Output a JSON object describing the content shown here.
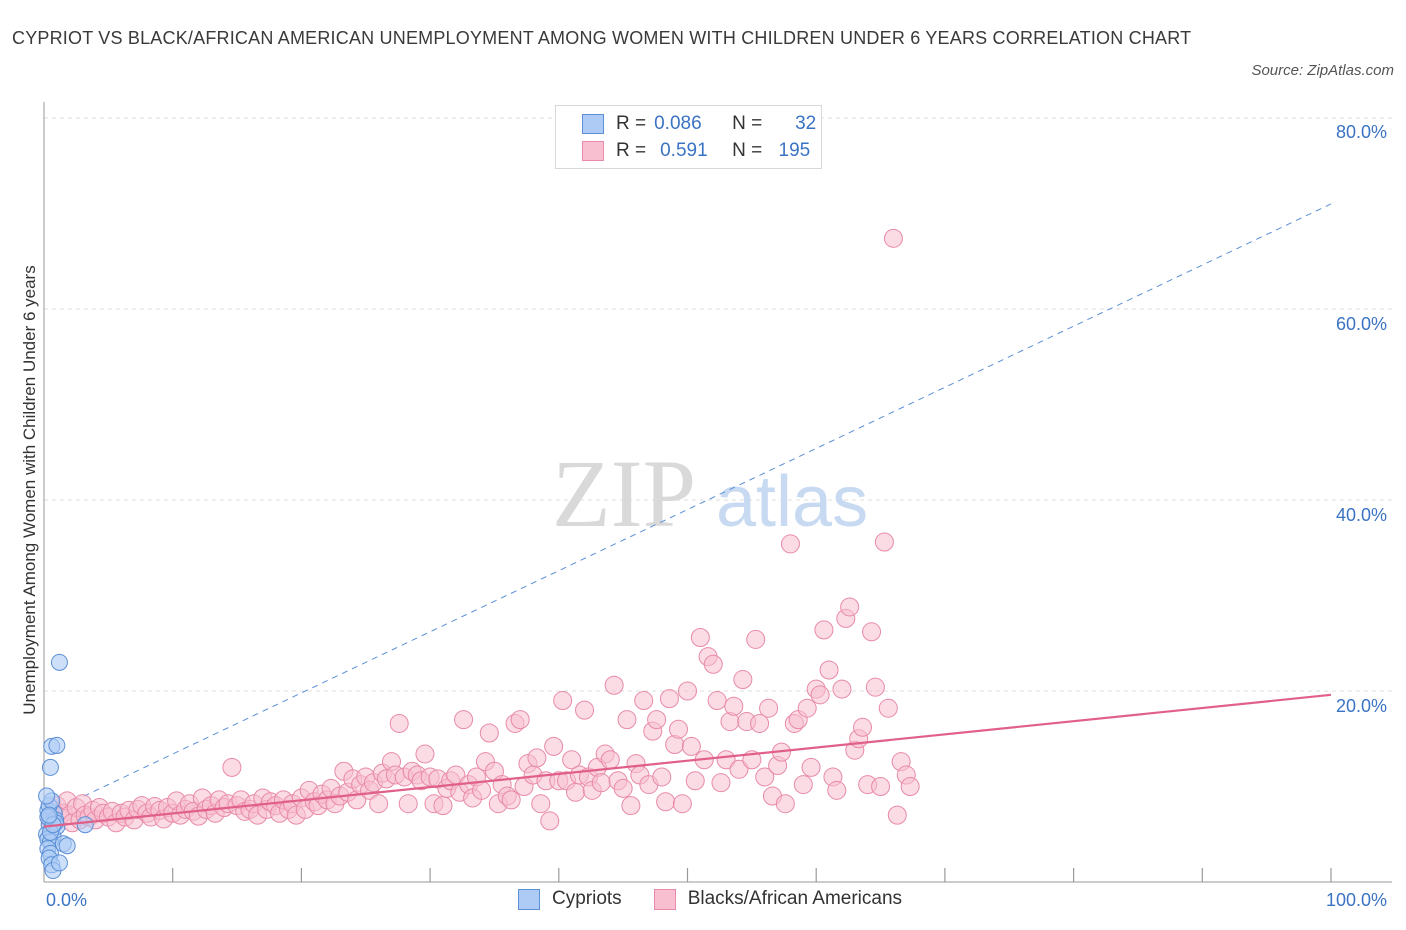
{
  "header": {
    "title": "CYPRIOT VS BLACK/AFRICAN AMERICAN UNEMPLOYMENT AMONG WOMEN WITH CHILDREN UNDER 6 YEARS CORRELATION CHART",
    "source": "Source: ZipAtlas.com"
  },
  "watermark": {
    "zip": "ZIP",
    "atlas": "atlas"
  },
  "legend": {
    "rows": [
      {
        "r_label": "R =",
        "r_value": "0.086",
        "n_label": "N =",
        "n_value": "32",
        "color": "#aecbf5"
      },
      {
        "r_label": "R =",
        "r_value": "0.591",
        "n_label": "N =",
        "n_value": "195",
        "color": "#f7bfd0"
      }
    ]
  },
  "colors": {
    "cypriot_fill": "#aecbf5",
    "cypriot_stroke": "#5b8fd6",
    "black_fill": "#f7bfd0",
    "black_stroke": "#e88aa8",
    "black_trend": "#e0608a",
    "cypriot_trend": "#5b8fd6",
    "tick_label": "#3b73c4"
  },
  "chart_data": {
    "type": "scatter",
    "title": "CYPRIOT VS BLACK/AFRICAN AMERICAN UNEMPLOYMENT AMONG WOMEN WITH CHILDREN UNDER 6 YEARS CORRELATION CHART",
    "xlabel": "",
    "ylabel": "Unemployment Among Women with Children Under 6 years",
    "xlim": [
      0,
      100
    ],
    "ylim": [
      0,
      80
    ],
    "x_tick_labels": [
      "0.0%",
      "100.0%"
    ],
    "y_tick_labels": [
      "20.0%",
      "40.0%",
      "60.0%",
      "80.0%"
    ],
    "y_ticks": [
      20,
      40,
      60,
      80
    ],
    "grid": "horizontal dashed",
    "legend_position": "top-center",
    "series": [
      {
        "name": "Cypriots",
        "R": 0.086,
        "N": 32,
        "trend": {
          "style": "dashed",
          "x": [
            0,
            100
          ],
          "y": [
            7.0,
            71.0
          ]
        },
        "points": [
          [
            0.3,
            7.5
          ],
          [
            0.5,
            6.8
          ],
          [
            0.4,
            6.0
          ],
          [
            0.6,
            5.5
          ],
          [
            0.2,
            5.0
          ],
          [
            0.7,
            4.8
          ],
          [
            0.3,
            4.5
          ],
          [
            0.5,
            4.2
          ],
          [
            0.8,
            7.2
          ],
          [
            0.4,
            8.0
          ],
          [
            0.6,
            8.5
          ],
          [
            0.2,
            9.0
          ],
          [
            0.9,
            6.5
          ],
          [
            1.0,
            5.8
          ],
          [
            0.3,
            3.5
          ],
          [
            0.5,
            3.0
          ],
          [
            0.4,
            2.5
          ],
          [
            0.6,
            1.8
          ],
          [
            0.7,
            1.2
          ],
          [
            0.5,
            12.0
          ],
          [
            0.6,
            14.2
          ],
          [
            1.0,
            14.3
          ],
          [
            1.2,
            23.0
          ],
          [
            1.5,
            4.0
          ],
          [
            1.8,
            3.8
          ],
          [
            1.2,
            2.0
          ],
          [
            0.9,
            6.2
          ],
          [
            0.3,
            6.8
          ],
          [
            0.5,
            5.2
          ],
          [
            0.7,
            6.0
          ],
          [
            3.2,
            6.0
          ],
          [
            0.4,
            7.0
          ]
        ]
      },
      {
        "name": "Blacks/African Americans",
        "R": 0.591,
        "N": 195,
        "trend": {
          "style": "solid",
          "x": [
            0,
            100
          ],
          "y": [
            5.8,
            19.6
          ]
        },
        "points": [
          [
            0.5,
            6.5
          ],
          [
            0.8,
            7.5
          ],
          [
            1.0,
            8.0
          ],
          [
            1.2,
            6.8
          ],
          [
            1.5,
            7.2
          ],
          [
            1.8,
            8.5
          ],
          [
            2.0,
            7.0
          ],
          [
            2.2,
            6.2
          ],
          [
            2.5,
            7.8
          ],
          [
            2.8,
            6.5
          ],
          [
            3.0,
            8.2
          ],
          [
            3.2,
            7.0
          ],
          [
            3.5,
            6.8
          ],
          [
            3.8,
            7.5
          ],
          [
            4.0,
            6.5
          ],
          [
            4.3,
            7.8
          ],
          [
            4.6,
            7.2
          ],
          [
            5.0,
            6.8
          ],
          [
            5.3,
            7.4
          ],
          [
            5.6,
            6.2
          ],
          [
            6.0,
            7.2
          ],
          [
            6.3,
            6.8
          ],
          [
            6.6,
            7.5
          ],
          [
            7.0,
            6.5
          ],
          [
            7.3,
            7.6
          ],
          [
            7.6,
            8.0
          ],
          [
            8.0,
            7.2
          ],
          [
            8.3,
            6.8
          ],
          [
            8.6,
            7.9
          ],
          [
            9.0,
            7.5
          ],
          [
            9.3,
            6.6
          ],
          [
            9.6,
            7.8
          ],
          [
            10.0,
            7.2
          ],
          [
            10.3,
            8.5
          ],
          [
            10.6,
            7.0
          ],
          [
            11.0,
            7.6
          ],
          [
            11.3,
            8.2
          ],
          [
            11.6,
            7.4
          ],
          [
            12.0,
            6.9
          ],
          [
            12.3,
            8.8
          ],
          [
            12.6,
            7.6
          ],
          [
            13.0,
            8.0
          ],
          [
            13.3,
            7.2
          ],
          [
            13.6,
            8.6
          ],
          [
            14.0,
            7.8
          ],
          [
            14.3,
            8.2
          ],
          [
            14.6,
            12.0
          ],
          [
            15.0,
            8.0
          ],
          [
            15.3,
            8.6
          ],
          [
            15.6,
            7.4
          ],
          [
            16.0,
            7.6
          ],
          [
            16.3,
            8.2
          ],
          [
            16.6,
            7.0
          ],
          [
            17.0,
            8.8
          ],
          [
            17.3,
            7.6
          ],
          [
            17.6,
            8.4
          ],
          [
            18.0,
            8.0
          ],
          [
            18.3,
            7.2
          ],
          [
            18.6,
            8.6
          ],
          [
            19.0,
            7.6
          ],
          [
            19.3,
            8.2
          ],
          [
            19.6,
            7.0
          ],
          [
            20.0,
            8.8
          ],
          [
            20.3,
            7.6
          ],
          [
            20.6,
            9.6
          ],
          [
            21.0,
            8.4
          ],
          [
            21.3,
            8.0
          ],
          [
            21.6,
            9.2
          ],
          [
            22.0,
            8.6
          ],
          [
            22.3,
            9.8
          ],
          [
            22.6,
            8.2
          ],
          [
            23.0,
            9.0
          ],
          [
            23.3,
            11.6
          ],
          [
            23.6,
            9.4
          ],
          [
            24.0,
            10.8
          ],
          [
            24.3,
            8.6
          ],
          [
            24.6,
            10.2
          ],
          [
            25.0,
            11.0
          ],
          [
            25.3,
            9.6
          ],
          [
            25.6,
            10.4
          ],
          [
            26.0,
            8.2
          ],
          [
            26.3,
            11.4
          ],
          [
            26.6,
            10.8
          ],
          [
            27.0,
            12.6
          ],
          [
            27.3,
            11.2
          ],
          [
            27.6,
            16.6
          ],
          [
            28.0,
            11.0
          ],
          [
            28.3,
            8.2
          ],
          [
            28.6,
            11.6
          ],
          [
            29.0,
            11.2
          ],
          [
            29.3,
            10.6
          ],
          [
            29.6,
            13.4
          ],
          [
            30.0,
            11.0
          ],
          [
            30.3,
            8.2
          ],
          [
            30.6,
            10.8
          ],
          [
            31.0,
            8.0
          ],
          [
            31.3,
            9.8
          ],
          [
            31.6,
            10.6
          ],
          [
            32.0,
            11.2
          ],
          [
            32.3,
            9.4
          ],
          [
            32.6,
            17.0
          ],
          [
            33.0,
            10.2
          ],
          [
            33.3,
            8.8
          ],
          [
            33.6,
            11.0
          ],
          [
            34.0,
            9.6
          ],
          [
            34.3,
            12.6
          ],
          [
            34.6,
            15.6
          ],
          [
            35.0,
            11.6
          ],
          [
            35.3,
            8.2
          ],
          [
            35.6,
            10.2
          ],
          [
            36.0,
            9.0
          ],
          [
            36.3,
            8.6
          ],
          [
            36.6,
            16.6
          ],
          [
            37.0,
            17.0
          ],
          [
            37.3,
            10.0
          ],
          [
            37.6,
            12.4
          ],
          [
            38.0,
            11.2
          ],
          [
            38.3,
            13.0
          ],
          [
            38.6,
            8.2
          ],
          [
            39.0,
            10.6
          ],
          [
            39.3,
            6.4
          ],
          [
            39.6,
            14.2
          ],
          [
            40.0,
            10.6
          ],
          [
            40.3,
            19.0
          ],
          [
            40.6,
            10.6
          ],
          [
            41.0,
            12.8
          ],
          [
            41.3,
            9.4
          ],
          [
            41.6,
            11.2
          ],
          [
            42.0,
            18.0
          ],
          [
            42.3,
            11.0
          ],
          [
            42.6,
            9.6
          ],
          [
            43.0,
            12.0
          ],
          [
            43.3,
            10.4
          ],
          [
            43.6,
            13.4
          ],
          [
            44.0,
            12.8
          ],
          [
            44.3,
            20.6
          ],
          [
            44.6,
            10.6
          ],
          [
            45.0,
            9.8
          ],
          [
            45.3,
            17.0
          ],
          [
            45.6,
            8.0
          ],
          [
            46.0,
            12.4
          ],
          [
            46.3,
            11.2
          ],
          [
            46.6,
            19.0
          ],
          [
            47.0,
            10.2
          ],
          [
            47.3,
            15.8
          ],
          [
            47.6,
            17.0
          ],
          [
            48.0,
            11.0
          ],
          [
            48.3,
            8.4
          ],
          [
            48.6,
            19.2
          ],
          [
            49.0,
            14.4
          ],
          [
            49.3,
            16.0
          ],
          [
            49.6,
            8.2
          ],
          [
            50.0,
            20.0
          ],
          [
            50.3,
            14.2
          ],
          [
            50.6,
            10.6
          ],
          [
            51.0,
            25.6
          ],
          [
            51.3,
            12.8
          ],
          [
            51.6,
            23.6
          ],
          [
            52.0,
            22.8
          ],
          [
            52.3,
            19.0
          ],
          [
            52.6,
            10.4
          ],
          [
            53.0,
            12.8
          ],
          [
            53.3,
            16.8
          ],
          [
            53.6,
            18.4
          ],
          [
            54.0,
            11.8
          ],
          [
            54.3,
            21.2
          ],
          [
            54.6,
            16.8
          ],
          [
            55.0,
            12.8
          ],
          [
            55.3,
            25.4
          ],
          [
            55.6,
            16.6
          ],
          [
            56.0,
            11.0
          ],
          [
            56.3,
            18.2
          ],
          [
            56.6,
            9.0
          ],
          [
            57.0,
            12.2
          ],
          [
            57.3,
            13.6
          ],
          [
            57.6,
            8.2
          ],
          [
            58.0,
            35.4
          ],
          [
            58.3,
            16.6
          ],
          [
            58.6,
            17.0
          ],
          [
            59.0,
            10.2
          ],
          [
            59.3,
            18.2
          ],
          [
            59.6,
            12.0
          ],
          [
            60.0,
            20.2
          ],
          [
            60.3,
            19.6
          ],
          [
            60.6,
            26.4
          ],
          [
            61.0,
            22.2
          ],
          [
            61.3,
            11.0
          ],
          [
            61.6,
            9.6
          ],
          [
            62.0,
            20.2
          ],
          [
            62.3,
            27.6
          ],
          [
            62.6,
            28.8
          ],
          [
            63.0,
            13.8
          ],
          [
            63.3,
            15.0
          ],
          [
            63.6,
            16.2
          ],
          [
            64.0,
            10.2
          ],
          [
            64.3,
            26.2
          ],
          [
            64.6,
            20.4
          ],
          [
            65.0,
            10.0
          ],
          [
            65.3,
            35.6
          ],
          [
            65.6,
            18.2
          ],
          [
            66.0,
            67.4
          ],
          [
            66.3,
            7.0
          ],
          [
            66.6,
            12.6
          ],
          [
            67.0,
            11.2
          ],
          [
            67.3,
            10.0
          ]
        ]
      }
    ]
  }
}
